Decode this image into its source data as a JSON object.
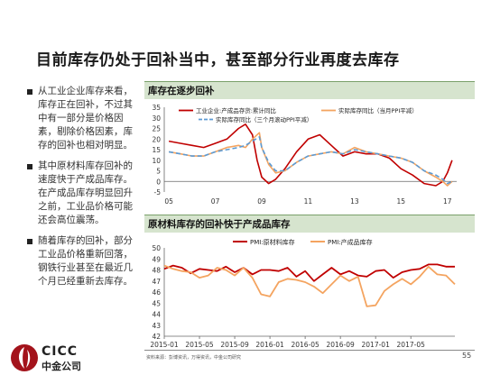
{
  "title": "目前库存仍处于回补当中，甚至部分行业再度去库存",
  "bullets": [
    "从工业企业库存来看，库存正在回补，不过其中有一部分是价格因素，剔除价格因素，库存的回补也相对明显。",
    "其中原材料库存回补的速度快于产成品库存。在产成品库存明显回升之前，工业品价格可能还会高位震荡。",
    "随着库存的回补，部分工业品价格重新回落，钢铁行业甚至在最近几个月已经重新去库存。"
  ],
  "footer": {
    "logo_en": "CICC",
    "logo_cn": "中金公司",
    "source": "资料来源：彭博资讯，万得资讯，中金公司研究",
    "page": "55"
  },
  "colors": {
    "red": "#c00000",
    "orange": "#f4a460",
    "blue": "#5b9bd5",
    "panel": "#d6e4ce"
  },
  "chart_data": [
    {
      "type": "line",
      "title": "库存在逐步回补",
      "x_ticks": [
        "05",
        "07",
        "09",
        "11",
        "13",
        "15",
        "17"
      ],
      "ylim": [
        -5,
        35
      ],
      "y_ticks": [
        -5,
        0,
        5,
        10,
        15,
        20,
        25,
        30,
        35
      ],
      "legend": "top-inside",
      "series": [
        {
          "name": "工业企业:产成品存货:累计同比",
          "color": "#c00000",
          "x": [
            2005.0,
            2005.5,
            2006.0,
            2006.5,
            2007.0,
            2007.5,
            2008.0,
            2008.3,
            2008.6,
            2008.8,
            2009.0,
            2009.3,
            2009.6,
            2010.0,
            2010.5,
            2011.0,
            2011.5,
            2012.0,
            2012.5,
            2013.0,
            2013.5,
            2014.0,
            2014.5,
            2015.0,
            2015.5,
            2016.0,
            2016.5,
            2016.8,
            2017.0,
            2017.2
          ],
          "y": [
            19,
            18,
            17,
            16,
            18,
            20,
            25,
            27,
            22,
            10,
            2,
            -1,
            1,
            6,
            14,
            20,
            22,
            17,
            12,
            14,
            13,
            13,
            11,
            6,
            3,
            -1,
            -2,
            0,
            4,
            10
          ]
        },
        {
          "name": "实际库存同比（当月PPI平减）",
          "color": "#f4a460",
          "x": [
            2005.0,
            2005.5,
            2006.0,
            2006.5,
            2007.0,
            2007.5,
            2008.0,
            2008.3,
            2008.6,
            2008.9,
            2009.0,
            2009.3,
            2009.6,
            2010.0,
            2010.5,
            2011.0,
            2011.5,
            2012.0,
            2012.5,
            2013.0,
            2013.5,
            2014.0,
            2014.5,
            2015.0,
            2015.5,
            2016.0,
            2016.5,
            2016.8,
            2017.0,
            2017.2
          ],
          "y": [
            14,
            13,
            12,
            12,
            14,
            16,
            17,
            16,
            20,
            23,
            16,
            8,
            4,
            5,
            9,
            12,
            13,
            14,
            13,
            16,
            14,
            13,
            12,
            11,
            9,
            5,
            2,
            0,
            -2,
            0
          ]
        },
        {
          "name": "实际库存同比（三个月滚动PPI平减）",
          "color": "#5b9bd5",
          "dashed": true,
          "x": [
            2005.0,
            2005.5,
            2006.0,
            2006.5,
            2007.0,
            2007.5,
            2008.0,
            2008.3,
            2008.6,
            2008.9,
            2009.0,
            2009.3,
            2009.6,
            2010.0,
            2010.5,
            2011.0,
            2011.5,
            2012.0,
            2012.5,
            2013.0,
            2013.5,
            2014.0,
            2014.5,
            2015.0,
            2015.5,
            2016.0,
            2016.5,
            2016.8,
            2017.0,
            2017.2
          ],
          "y": [
            14,
            13,
            12,
            12,
            14,
            15,
            16,
            17,
            19,
            21,
            16,
            9,
            5,
            5,
            9,
            12,
            13,
            14,
            13,
            15,
            14,
            13,
            12,
            11,
            9,
            5,
            3,
            1,
            -1,
            0
          ]
        }
      ]
    },
    {
      "type": "line",
      "title": "原材料库存的回补快于产成品库存",
      "x_ticks": [
        "2015-01",
        "2015-05",
        "2015-09",
        "2016-01",
        "2016-05",
        "2016-09",
        "2017-01",
        "2017-05"
      ],
      "ylim": [
        42,
        50
      ],
      "y_ticks": [
        42,
        43,
        44,
        45,
        46,
        47,
        48,
        49,
        50
      ],
      "legend": "top-inside",
      "series": [
        {
          "name": "PMI:原材料库存",
          "color": "#c00000",
          "values": [
            48.1,
            48.4,
            48.2,
            47.7,
            48.1,
            48.0,
            47.9,
            48.3,
            47.8,
            48.2,
            47.6,
            48.0,
            48.0,
            47.9,
            48.2,
            47.4,
            47.9,
            47.0,
            47.6,
            48.2,
            47.6,
            47.9,
            47.5,
            47.4,
            47.9,
            48.0,
            47.3,
            47.8,
            48.0,
            48.1,
            48.5,
            48.5,
            48.3,
            48.3
          ]
        },
        {
          "name": "PMI:产成品库存",
          "color": "#f4a460",
          "values": [
            48.4,
            48.1,
            47.9,
            47.8,
            47.3,
            47.5,
            48.2,
            48.0,
            47.5,
            48.2,
            47.3,
            45.8,
            45.6,
            46.9,
            47.2,
            47.1,
            46.9,
            46.5,
            45.9,
            46.7,
            47.5,
            47.0,
            47.4,
            44.7,
            44.8,
            46.1,
            46.7,
            47.2,
            46.7,
            47.4,
            48.3,
            47.6,
            47.5,
            46.7
          ]
        }
      ]
    }
  ]
}
